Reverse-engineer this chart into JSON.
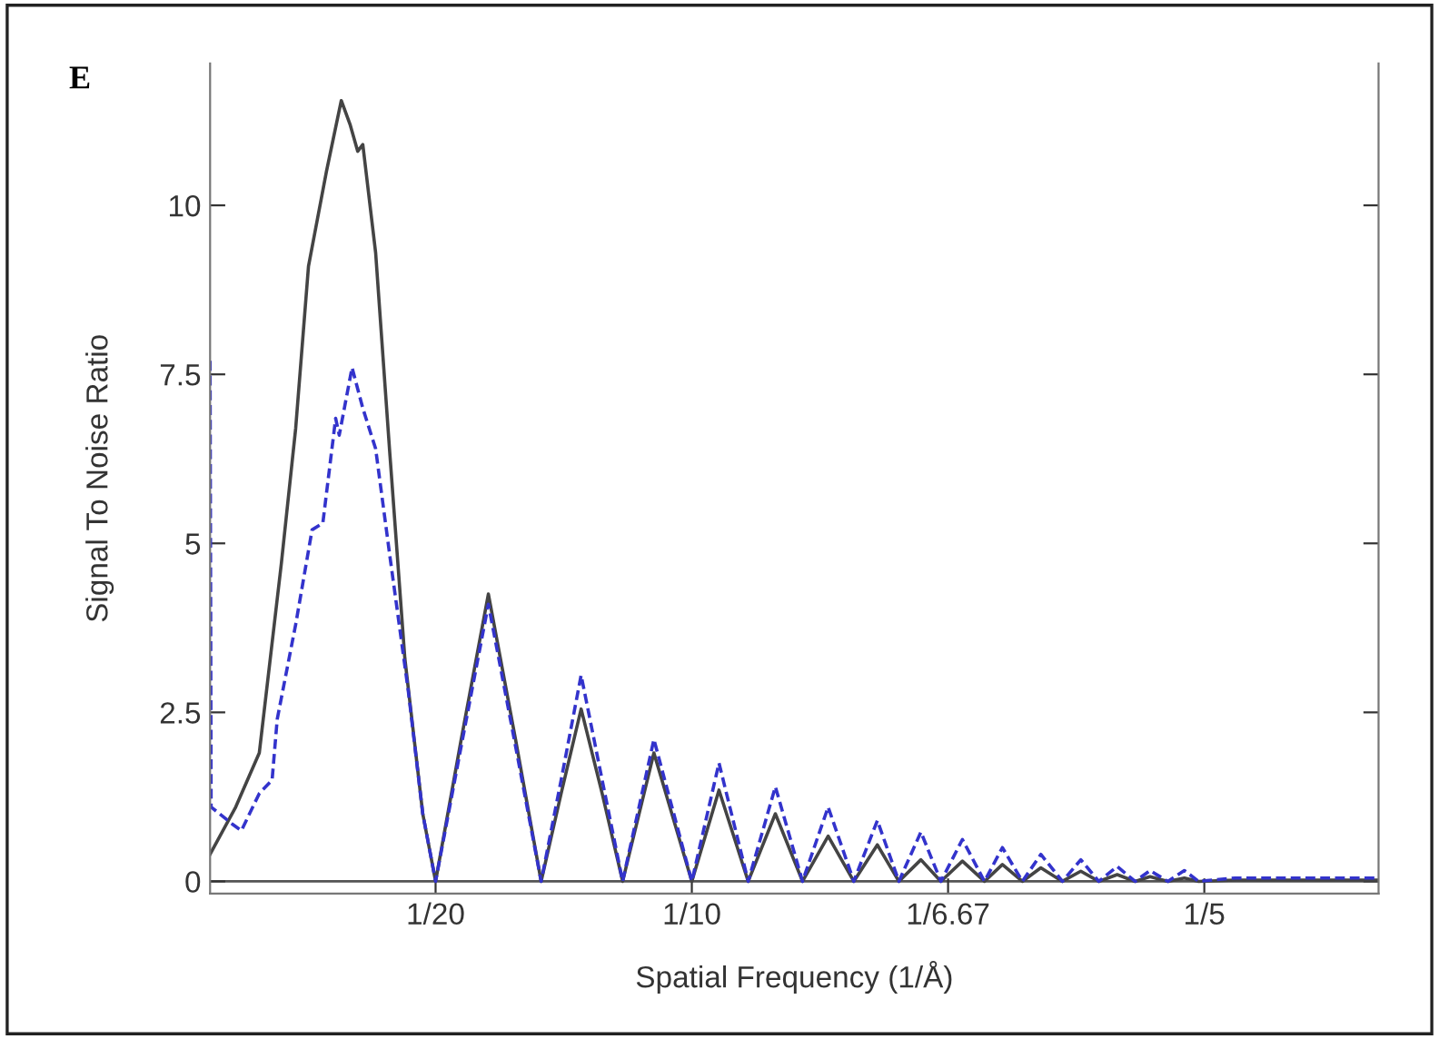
{
  "chart_data": {
    "type": "line",
    "xlabel": "Spatial Frequency (1/Å)",
    "ylabel": "Signal To Noise Ratio",
    "annotations": [
      "E"
    ],
    "xlim": [
      0.006,
      0.234
    ],
    "ylim": [
      -0.18,
      12.1
    ],
    "xticks": [
      {
        "value": 0.05,
        "label": "1/20"
      },
      {
        "value": 0.1,
        "label": "1/10"
      },
      {
        "value": 0.15,
        "label": "1/6.67"
      },
      {
        "value": 0.2,
        "label": "1/5"
      }
    ],
    "yticks": [
      0,
      2.5,
      5,
      7.5,
      10
    ],
    "grid": false,
    "marker": "none",
    "ref_lines": [
      {
        "axis": "y",
        "value": 0,
        "color": "#555555",
        "line_style": "solid"
      }
    ],
    "series": [
      {
        "color": "#444444",
        "line_style": "solid",
        "x": [
          0.006,
          0.011,
          0.0156,
          0.0199,
          0.0227,
          0.0252,
          0.0287,
          0.0316,
          0.0333,
          0.0348,
          0.0358,
          0.0383,
          0.0411,
          0.044,
          0.0475,
          0.05,
          0.055,
          0.0603,
          0.0656,
          0.0706,
          0.0745,
          0.0784,
          0.0825,
          0.0865,
          0.0926,
          0.1,
          0.1053,
          0.111,
          0.1163,
          0.1216,
          0.1266,
          0.1316,
          0.1362,
          0.1404,
          0.1447,
          0.1486,
          0.1528,
          0.1571,
          0.1606,
          0.1645,
          0.1681,
          0.1723,
          0.1759,
          0.1794,
          0.183,
          0.1865,
          0.1894,
          0.1929,
          0.1961,
          0.1989,
          0.206,
          0.2131,
          0.2202,
          0.2273,
          0.234
        ],
        "values": [
          0.4,
          1.1,
          1.9,
          4.7,
          6.7,
          9.1,
          10.5,
          11.55,
          11.2,
          10.8,
          10.9,
          9.3,
          6.3,
          3.3,
          1.0,
          0,
          2.1,
          4.25,
          2.1,
          0,
          1.3,
          2.55,
          1.3,
          0,
          1.9,
          0,
          1.35,
          0,
          1.0,
          0,
          0.67,
          0,
          0.54,
          0,
          0.32,
          0,
          0.3,
          0,
          0.25,
          0,
          0.2,
          0,
          0.15,
          0,
          0.1,
          0,
          0.07,
          0,
          0.05,
          0,
          0.02,
          0.02,
          0.02,
          0.02,
          0.02
        ]
      },
      {
        "color": "#3333cc",
        "line_style": "dashed",
        "x": [
          0.006,
          0.0062,
          0.0103,
          0.0121,
          0.0156,
          0.0181,
          0.0191,
          0.0227,
          0.0259,
          0.028,
          0.0305,
          0.0312,
          0.0337,
          0.0358,
          0.0383,
          0.0411,
          0.0447,
          0.0475,
          0.05,
          0.055,
          0.0603,
          0.0656,
          0.0706,
          0.0745,
          0.0784,
          0.0825,
          0.0865,
          0.0926,
          0.1,
          0.1053,
          0.111,
          0.1163,
          0.1216,
          0.1266,
          0.1316,
          0.1362,
          0.1404,
          0.1447,
          0.1486,
          0.1528,
          0.1571,
          0.1606,
          0.1645,
          0.1681,
          0.1723,
          0.1759,
          0.1794,
          0.183,
          0.1865,
          0.1894,
          0.1929,
          0.1961,
          0.1989,
          0.206,
          0.2131,
          0.2202,
          0.2273,
          0.234
        ],
        "values": [
          7.7,
          1.1,
          0.85,
          0.75,
          1.3,
          1.5,
          2.4,
          3.8,
          5.2,
          5.3,
          6.85,
          6.6,
          7.6,
          7.0,
          6.4,
          4.8,
          2.8,
          1.0,
          0,
          2.0,
          4.1,
          2.0,
          0,
          1.5,
          3.05,
          1.5,
          0,
          2.1,
          0,
          1.75,
          0,
          1.4,
          0,
          1.1,
          0,
          0.9,
          0,
          0.73,
          0,
          0.62,
          0,
          0.5,
          0,
          0.4,
          0,
          0.32,
          0,
          0.22,
          0,
          0.16,
          0,
          0.16,
          0,
          0.05,
          0.05,
          0.05,
          0.05,
          0.05
        ]
      }
    ]
  }
}
